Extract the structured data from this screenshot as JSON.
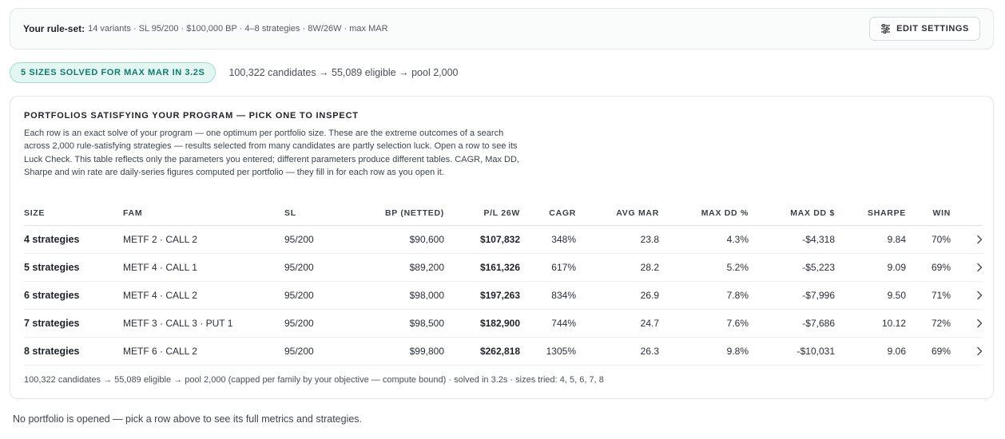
{
  "ruleset": {
    "label": "Your rule-set:",
    "summary": "14 variants · SL 95/200 · $100,000 BP · 4–8 strategies · 8W/26W · max MAR",
    "edit_button": "EDIT SETTINGS",
    "edit_icon": "sliders-icon"
  },
  "status": {
    "pill": "5 SIZES SOLVED FOR MAX MAR IN 3.2S",
    "funnel": "100,322 candidates → 55,089 eligible → pool 2,000"
  },
  "portfolios": {
    "title": "PORTFOLIOS SATISFYING YOUR PROGRAM — PICK ONE TO INSPECT",
    "description": "Each row is an exact solve of your program — one optimum per portfolio size. These are the extreme outcomes of a search across 2,000 rule-satisfying strategies — results selected from many candidates are partly selection luck. Open a row to see its Luck Check. This table reflects only the parameters you entered; different parameters produce different tables. CAGR, Max DD, Sharpe and win rate are daily-series figures computed per portfolio — they fill in for each row as you open it.",
    "columns": [
      "SIZE",
      "FAM",
      "SL",
      "BP (NETTED)",
      "P/L 26W",
      "CAGR",
      "AVG MAR",
      "MAX DD %",
      "MAX DD $",
      "SHARPE",
      "WIN"
    ],
    "rows": [
      {
        "size": "4 strategies",
        "fam": "METF 2 · CALL 2",
        "sl": "95/200",
        "bp": "$90,600",
        "pl": "$107,832",
        "cagr": "348%",
        "mar": "23.8",
        "ddp": "4.3%",
        "ddd": "-$4,318",
        "sharpe": "9.84",
        "win": "70%"
      },
      {
        "size": "5 strategies",
        "fam": "METF 4 · CALL 1",
        "sl": "95/200",
        "bp": "$89,200",
        "pl": "$161,326",
        "cagr": "617%",
        "mar": "28.2",
        "ddp": "5.2%",
        "ddd": "-$5,223",
        "sharpe": "9.09",
        "win": "69%"
      },
      {
        "size": "6 strategies",
        "fam": "METF 4 · CALL 2",
        "sl": "95/200",
        "bp": "$98,000",
        "pl": "$197,263",
        "cagr": "834%",
        "mar": "26.9",
        "ddp": "7.8%",
        "ddd": "-$7,996",
        "sharpe": "9.50",
        "win": "71%"
      },
      {
        "size": "7 strategies",
        "fam": "METF 3 · CALL 3 · PUT 1",
        "sl": "95/200",
        "bp": "$98,500",
        "pl": "$182,900",
        "cagr": "744%",
        "mar": "24.7",
        "ddp": "7.6%",
        "ddd": "-$7,686",
        "sharpe": "10.12",
        "win": "72%"
      },
      {
        "size": "8 strategies",
        "fam": "METF 6 · CALL 2",
        "sl": "95/200",
        "bp": "$99,800",
        "pl": "$262,818",
        "cagr": "1305%",
        "mar": "26.3",
        "ddp": "9.8%",
        "ddd": "-$10,031",
        "sharpe": "9.06",
        "win": "69%"
      }
    ],
    "row_icon": "chevron-right-icon",
    "footer": "100,322 candidates → 55,089 eligible → pool 2,000 (capped per family by your objective — compute bound) · solved in 3.2s · sizes tried: 4, 5, 6, 7, 8"
  },
  "empty_state": "No portfolio is opened — pick a row above to see its full metrics and strategies.",
  "colors": {
    "accent_teal": "#0f7d68",
    "pill_bg": "#e3f6f2",
    "border": "#e3e6ea"
  }
}
